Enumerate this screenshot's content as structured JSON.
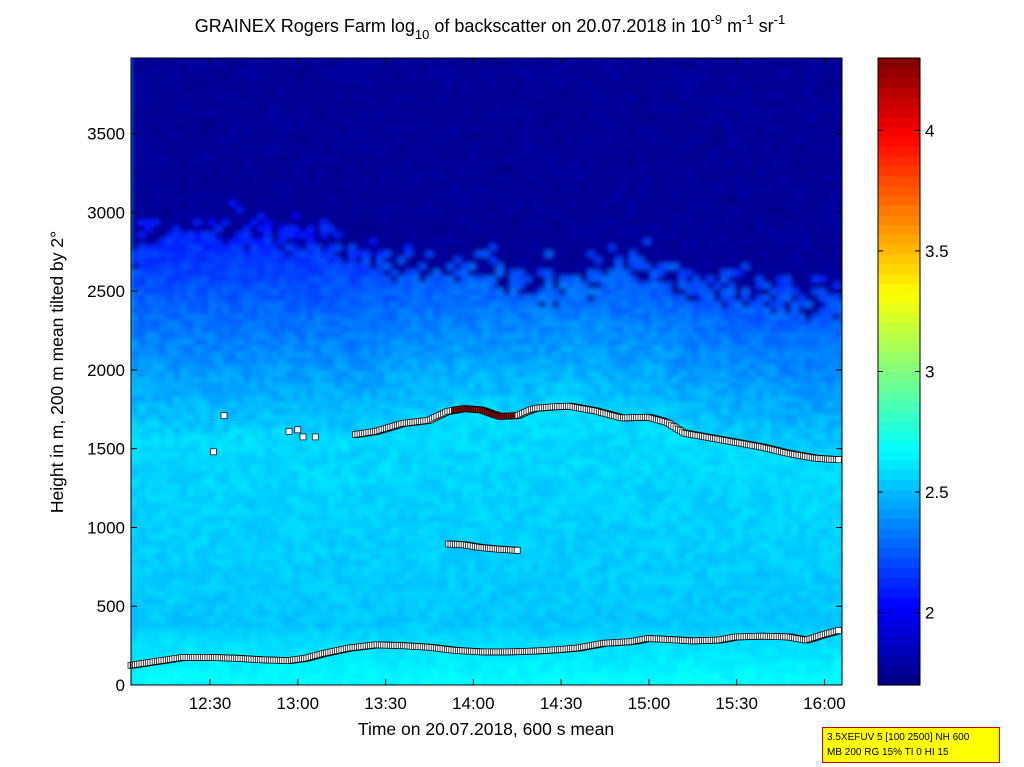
{
  "chart_data": {
    "type": "heatmap",
    "title": {
      "prefix": "GRAINEX Rogers Farm log",
      "log_base": "10",
      "middle": " of backscatter on 20.07.2018 in 10",
      "unit_exp1": "-9",
      "unit_m": " m",
      "unit_exp2": "-1",
      "unit_sr": " sr",
      "unit_exp3": "-1"
    },
    "xlabel": "Time on 20.07.2018, 600 s mean",
    "ylabel": "Height in m, 200 m mean tilted by 2°",
    "xlim_hours": [
      12.05,
      16.1
    ],
    "ylim": [
      0,
      3980
    ],
    "x_ticks": [
      {
        "value": 12.5,
        "label": "12:30"
      },
      {
        "value": 13.0,
        "label": "13:00"
      },
      {
        "value": 13.5,
        "label": "13:30"
      },
      {
        "value": 14.0,
        "label": "14:00"
      },
      {
        "value": 14.5,
        "label": "14:30"
      },
      {
        "value": 15.0,
        "label": "15:00"
      },
      {
        "value": 15.5,
        "label": "15:30"
      },
      {
        "value": 16.0,
        "label": "16:00"
      }
    ],
    "y_ticks": [
      0,
      500,
      1000,
      1500,
      2000,
      2500,
      3000,
      3500
    ],
    "colorbar": {
      "colormap": "jet",
      "range": [
        1.7,
        4.3
      ],
      "ticks": [
        {
          "value": 2,
          "label": "2"
        },
        {
          "value": 2.5,
          "label": "2.5"
        },
        {
          "value": 3,
          "label": "3"
        },
        {
          "value": 3.5,
          "label": "3.5"
        },
        {
          "value": 4,
          "label": "4"
        }
      ]
    },
    "layers": [
      {
        "name": "top layer",
        "color_value": 2.72,
        "points": [
          [
            13.33,
            1590
          ],
          [
            13.45,
            1610
          ],
          [
            13.6,
            1660
          ],
          [
            13.75,
            1680
          ],
          [
            13.85,
            1735
          ],
          [
            13.95,
            1755
          ],
          [
            14.05,
            1745
          ],
          [
            14.15,
            1705
          ],
          [
            14.25,
            1710
          ],
          [
            14.35,
            1755
          ],
          [
            14.45,
            1765
          ],
          [
            14.55,
            1770
          ],
          [
            14.7,
            1740
          ],
          [
            14.85,
            1695
          ],
          [
            15.0,
            1700
          ],
          [
            15.1,
            1670
          ],
          [
            15.2,
            1600
          ],
          [
            15.35,
            1570
          ],
          [
            15.5,
            1540
          ],
          [
            15.65,
            1510
          ],
          [
            15.8,
            1470
          ],
          [
            15.95,
            1440
          ],
          [
            16.08,
            1430
          ]
        ]
      },
      {
        "name": "middle layer",
        "color_value": 2.6,
        "points": [
          [
            13.86,
            895
          ],
          [
            13.95,
            890
          ],
          [
            14.05,
            872
          ],
          [
            14.15,
            862
          ],
          [
            14.25,
            855
          ]
        ]
      },
      {
        "name": "bottom layer",
        "color_value": 2.7,
        "points": [
          [
            12.05,
            125
          ],
          [
            12.2,
            150
          ],
          [
            12.35,
            175
          ],
          [
            12.5,
            175
          ],
          [
            12.65,
            170
          ],
          [
            12.8,
            160
          ],
          [
            12.95,
            155
          ],
          [
            13.05,
            170
          ],
          [
            13.15,
            200
          ],
          [
            13.3,
            235
          ],
          [
            13.45,
            255
          ],
          [
            13.6,
            250
          ],
          [
            13.75,
            240
          ],
          [
            13.9,
            220
          ],
          [
            14.05,
            210
          ],
          [
            14.2,
            210
          ],
          [
            14.35,
            215
          ],
          [
            14.5,
            225
          ],
          [
            14.6,
            235
          ],
          [
            14.75,
            265
          ],
          [
            14.9,
            275
          ],
          [
            15.0,
            295
          ],
          [
            15.1,
            290
          ],
          [
            15.25,
            280
          ],
          [
            15.4,
            285
          ],
          [
            15.5,
            305
          ],
          [
            15.65,
            310
          ],
          [
            15.8,
            305
          ],
          [
            15.9,
            285
          ],
          [
            16.0,
            320
          ],
          [
            16.08,
            345
          ]
        ]
      }
    ],
    "top_layer_peak": {
      "color_value": 4.25,
      "x_range": [
        13.88,
        14.25
      ]
    },
    "isolated_markers": [
      [
        12.58,
        1710
      ],
      [
        12.52,
        1480
      ],
      [
        12.95,
        1610
      ],
      [
        13.0,
        1620
      ],
      [
        13.03,
        1575
      ],
      [
        13.1,
        1575
      ],
      [
        14.25,
        855
      ]
    ]
  },
  "info_box": {
    "line1": "3.5XEFUV 5 [100 2500] NH 600",
    "line2": "MB 200 RG 15% TI 0 HI 15"
  }
}
